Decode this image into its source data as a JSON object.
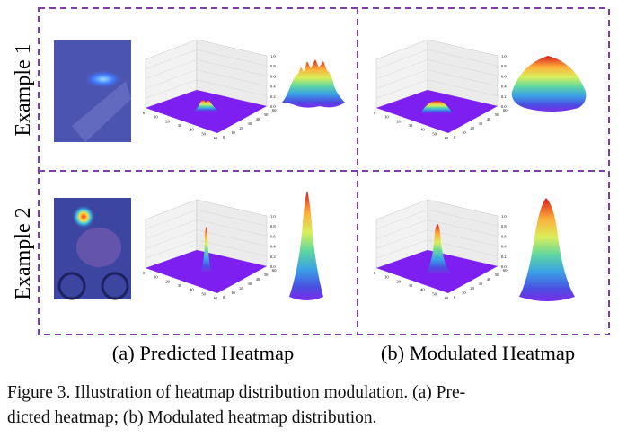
{
  "figure": {
    "rows": [
      "Example 1",
      "Example 2"
    ],
    "columns": [
      "(a) Predicted Heatmap",
      "(b) Modulated Heatmap"
    ],
    "plot_ticks": {
      "x": [
        "0",
        "10",
        "20",
        "30",
        "40",
        "50",
        "60"
      ],
      "y": [
        "0",
        "10",
        "20",
        "30",
        "40",
        "50",
        "60"
      ],
      "z": [
        "0.0",
        "0.2",
        "0.4",
        "0.6",
        "0.8",
        "1.0"
      ]
    },
    "caption": [
      "Figure 3. Illustration of heatmap distribution modulation. (a) Pre-",
      "dicted heatmap; (b) Modulated heatmap distribution."
    ]
  }
}
